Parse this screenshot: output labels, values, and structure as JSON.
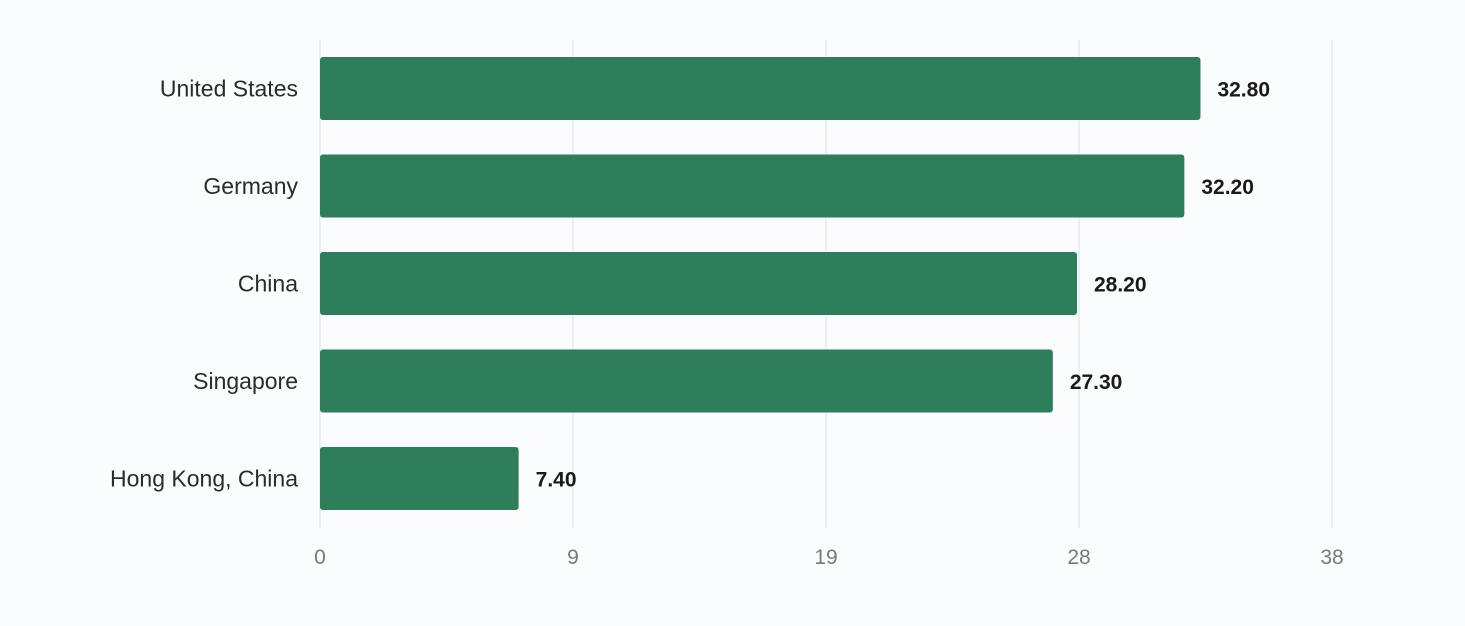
{
  "chart_data": {
    "type": "bar",
    "orientation": "horizontal",
    "categories": [
      "United States",
      "Germany",
      "China",
      "Singapore",
      "Hong Kong, China"
    ],
    "values": [
      32.8,
      32.2,
      28.2,
      27.3,
      7.4
    ],
    "value_labels": [
      "32.80",
      "32.20",
      "28.20",
      "27.30",
      "7.40"
    ],
    "xticks": [
      0,
      9,
      19,
      28,
      38
    ],
    "xtick_labels": [
      "0",
      "9",
      "19",
      "28",
      "38"
    ],
    "xlim": [
      0,
      37.7
    ],
    "grid": true,
    "legend": "none",
    "title": "",
    "xlabel": "",
    "ylabel": "",
    "colors": {
      "bar": "#2e7d5b",
      "background": "#fbfcfe",
      "grid": "#e6e9ee"
    }
  }
}
